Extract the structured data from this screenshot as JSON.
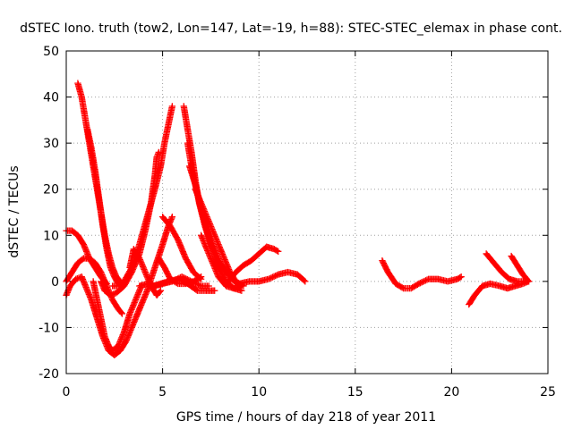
{
  "chart_data": {
    "type": "scatter",
    "title": "dSTEC Iono. truth (tow2, Lon=147, Lat=-19, h=88): STEC-STEC_elemax in phase cont.",
    "xlabel": "GPS time / hours of day 218 of year 2011",
    "ylabel": "dSTEC  / TECUs",
    "xlim": [
      0,
      25
    ],
    "ylim": [
      -20,
      50
    ],
    "xticks": [
      0,
      5,
      10,
      15,
      20,
      25
    ],
    "yticks": [
      -20,
      -10,
      0,
      10,
      20,
      30,
      40,
      50
    ],
    "xtick_labels": [
      "0",
      "5",
      "10",
      "15",
      "20",
      "25"
    ],
    "ytick_labels": [
      "-20",
      "-10",
      "0",
      "10",
      "20",
      "30",
      "40",
      "50"
    ],
    "grid": true,
    "marker": "plus",
    "color": "#ff0000",
    "series": [
      {
        "points": [
          [
            0.6,
            43
          ],
          [
            0.8,
            40
          ],
          [
            1.0,
            35
          ],
          [
            1.2,
            30
          ],
          [
            1.4,
            25
          ],
          [
            1.6,
            20
          ],
          [
            1.8,
            15
          ],
          [
            2.0,
            10
          ],
          [
            2.2,
            6
          ],
          [
            2.4,
            3
          ],
          [
            2.6,
            1
          ],
          [
            2.8,
            0
          ]
        ]
      },
      {
        "points": [
          [
            1.1,
            33
          ],
          [
            1.3,
            29
          ],
          [
            1.5,
            24
          ],
          [
            1.7,
            18
          ],
          [
            1.9,
            12
          ],
          [
            2.1,
            7
          ],
          [
            2.3,
            3
          ],
          [
            2.5,
            1
          ],
          [
            2.7,
            -0.5
          ],
          [
            2.9,
            -1
          ]
        ]
      },
      {
        "points": [
          [
            0.0,
            11
          ],
          [
            0.3,
            11
          ],
          [
            0.6,
            10
          ],
          [
            0.9,
            8
          ],
          [
            1.2,
            5
          ],
          [
            1.5,
            3
          ],
          [
            1.8,
            1
          ],
          [
            2.0,
            0
          ],
          [
            2.1,
            -0.5
          ]
        ]
      },
      {
        "points": [
          [
            0.0,
            0
          ],
          [
            0.3,
            2
          ],
          [
            0.6,
            4
          ],
          [
            0.9,
            5
          ],
          [
            1.2,
            5
          ],
          [
            1.5,
            4
          ],
          [
            1.8,
            2
          ],
          [
            2.1,
            -1
          ],
          [
            2.4,
            -4
          ],
          [
            2.7,
            -6
          ],
          [
            2.9,
            -7
          ]
        ]
      },
      {
        "points": [
          [
            0.0,
            -3
          ],
          [
            0.2,
            -1
          ],
          [
            0.5,
            0.5
          ],
          [
            0.8,
            1
          ],
          [
            1.0,
            -1
          ],
          [
            1.3,
            -4
          ],
          [
            1.6,
            -8
          ],
          [
            1.9,
            -12
          ],
          [
            2.2,
            -15
          ],
          [
            2.5,
            -16
          ],
          [
            2.8,
            -15
          ],
          [
            3.1,
            -13
          ],
          [
            3.4,
            -10
          ],
          [
            3.8,
            -6
          ],
          [
            4.2,
            -2
          ],
          [
            4.6,
            3
          ],
          [
            5.0,
            8
          ],
          [
            5.3,
            12
          ],
          [
            5.5,
            14
          ]
        ]
      },
      {
        "points": [
          [
            1.4,
            0
          ],
          [
            1.6,
            -4
          ],
          [
            1.8,
            -8
          ],
          [
            2.0,
            -12
          ],
          [
            2.2,
            -14
          ],
          [
            2.4,
            -15
          ],
          [
            2.7,
            -14
          ],
          [
            3.0,
            -11
          ],
          [
            3.3,
            -7
          ],
          [
            3.6,
            -4
          ],
          [
            3.9,
            -1
          ]
        ]
      },
      {
        "points": [
          [
            1.8,
            0
          ],
          [
            2.0,
            -2
          ],
          [
            2.3,
            -3
          ],
          [
            2.6,
            -2.5
          ],
          [
            3.0,
            -1
          ],
          [
            3.4,
            2
          ],
          [
            3.8,
            6
          ],
          [
            4.1,
            11
          ],
          [
            4.4,
            17
          ],
          [
            4.6,
            23
          ],
          [
            4.7,
            27
          ],
          [
            4.8,
            28
          ]
        ]
      },
      {
        "points": [
          [
            2.4,
            -1
          ],
          [
            2.7,
            -1
          ],
          [
            3.0,
            0
          ],
          [
            3.4,
            3
          ],
          [
            3.8,
            8
          ],
          [
            4.2,
            14
          ],
          [
            4.6,
            20
          ],
          [
            4.9,
            25
          ],
          [
            5.1,
            30
          ],
          [
            5.3,
            34
          ],
          [
            5.5,
            38
          ]
        ]
      },
      {
        "points": [
          [
            3.3,
            3
          ],
          [
            3.5,
            7
          ],
          [
            3.8,
            5
          ],
          [
            4.1,
            2
          ],
          [
            4.4,
            -1
          ],
          [
            4.7,
            -3
          ],
          [
            4.9,
            -2
          ]
        ]
      },
      {
        "points": [
          [
            4.5,
            -1
          ],
          [
            4.9,
            -0.5
          ],
          [
            5.3,
            0
          ],
          [
            5.8,
            0.5
          ],
          [
            6.3,
            -0.5
          ],
          [
            6.8,
            -2
          ],
          [
            7.2,
            -2
          ],
          [
            7.7,
            -2
          ]
        ]
      },
      {
        "points": [
          [
            3.8,
            -1
          ],
          [
            4.2,
            -0.5
          ],
          [
            4.6,
            -1
          ],
          [
            5.0,
            -0.5
          ],
          [
            5.5,
            0
          ],
          [
            6.0,
            1
          ],
          [
            6.5,
            0
          ],
          [
            7.0,
            -1
          ],
          [
            7.4,
            -1
          ]
        ]
      },
      {
        "points": [
          [
            4.8,
            5
          ],
          [
            5.1,
            3
          ],
          [
            5.4,
            0.5
          ],
          [
            5.8,
            -0.5
          ],
          [
            6.2,
            -0.5
          ],
          [
            6.6,
            0
          ],
          [
            7.0,
            1
          ]
        ]
      },
      {
        "points": [
          [
            5.0,
            14
          ],
          [
            5.4,
            12
          ],
          [
            5.8,
            9
          ],
          [
            6.2,
            5
          ],
          [
            6.6,
            2
          ],
          [
            7.0,
            0.5
          ]
        ]
      },
      {
        "points": [
          [
            6.1,
            38
          ],
          [
            6.3,
            33
          ],
          [
            6.5,
            28
          ],
          [
            6.7,
            22
          ],
          [
            6.9,
            17
          ],
          [
            7.2,
            12
          ],
          [
            7.5,
            8
          ],
          [
            7.8,
            5
          ],
          [
            8.1,
            3
          ],
          [
            8.4,
            1.5
          ]
        ]
      },
      {
        "points": [
          [
            6.3,
            30
          ],
          [
            6.5,
            25
          ],
          [
            6.8,
            19
          ],
          [
            7.1,
            14
          ],
          [
            7.4,
            10
          ],
          [
            7.7,
            7
          ],
          [
            8.0,
            4
          ],
          [
            8.3,
            2
          ],
          [
            8.6,
            0.5
          ],
          [
            9.0,
            -1
          ]
        ]
      },
      {
        "points": [
          [
            6.4,
            25
          ],
          [
            6.7,
            21
          ],
          [
            7.0,
            16
          ],
          [
            7.3,
            11
          ],
          [
            7.6,
            7
          ],
          [
            7.9,
            3
          ],
          [
            8.3,
            0
          ],
          [
            8.7,
            -1.5
          ],
          [
            9.1,
            -2
          ]
        ]
      },
      {
        "points": [
          [
            6.7,
            20
          ],
          [
            7.0,
            17
          ],
          [
            7.3,
            14
          ],
          [
            7.6,
            11
          ],
          [
            7.9,
            8
          ],
          [
            8.2,
            5
          ],
          [
            8.5,
            2
          ],
          [
            8.8,
            0
          ],
          [
            9.2,
            -1
          ]
        ]
      },
      {
        "points": [
          [
            7.0,
            10
          ],
          [
            7.3,
            7
          ],
          [
            7.6,
            4
          ],
          [
            7.9,
            1
          ],
          [
            8.3,
            -1
          ],
          [
            8.7,
            -1.5
          ],
          [
            9.1,
            -1
          ]
        ]
      },
      {
        "points": [
          [
            8.4,
            0
          ],
          [
            8.8,
            2
          ],
          [
            9.2,
            3.5
          ],
          [
            9.6,
            4.5
          ],
          [
            10.0,
            6
          ],
          [
            10.4,
            7.5
          ],
          [
            10.8,
            7
          ],
          [
            11.0,
            6.5
          ]
        ]
      },
      {
        "points": [
          [
            9.0,
            -0.5
          ],
          [
            9.5,
            0
          ],
          [
            10.0,
            0
          ],
          [
            10.5,
            0.5
          ],
          [
            11.0,
            1.5
          ],
          [
            11.5,
            2
          ],
          [
            12.0,
            1.5
          ],
          [
            12.4,
            0
          ]
        ]
      },
      {
        "points": [
          [
            16.4,
            4.5
          ],
          [
            16.7,
            2
          ],
          [
            17.1,
            -0.5
          ],
          [
            17.5,
            -1.5
          ],
          [
            17.9,
            -1.5
          ],
          [
            18.3,
            -0.5
          ],
          [
            18.8,
            0.5
          ],
          [
            19.3,
            0.5
          ],
          [
            19.8,
            0
          ],
          [
            20.3,
            0.5
          ],
          [
            20.5,
            1
          ]
        ]
      },
      {
        "points": [
          [
            20.9,
            -5
          ],
          [
            21.2,
            -3
          ],
          [
            21.6,
            -1
          ],
          [
            22.0,
            -0.5
          ],
          [
            22.5,
            -1
          ],
          [
            22.9,
            -1.5
          ],
          [
            23.3,
            -1
          ],
          [
            23.7,
            -0.5
          ],
          [
            24.0,
            0
          ]
        ]
      },
      {
        "points": [
          [
            21.8,
            6
          ],
          [
            22.2,
            4
          ],
          [
            22.6,
            2
          ],
          [
            23.0,
            0.5
          ],
          [
            23.4,
            0
          ],
          [
            23.8,
            0
          ],
          [
            24.0,
            0
          ]
        ]
      },
      {
        "points": [
          [
            23.1,
            5.5
          ],
          [
            23.4,
            3.5
          ],
          [
            23.7,
            1.5
          ],
          [
            24.0,
            0
          ]
        ]
      }
    ]
  }
}
